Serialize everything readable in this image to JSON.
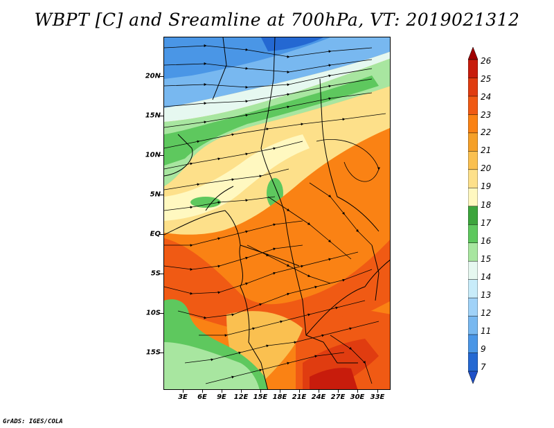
{
  "title": "WBPT [C] and Sreamline at 700hPa, VT: 2019021312",
  "credit": "GrADS: IGES/COLA",
  "map": {
    "latitude_labels": [
      "20N",
      "15N",
      "10N",
      "5N",
      "EQ",
      "5S",
      "10S",
      "15S"
    ],
    "longitude_labels": [
      "3E",
      "6E",
      "9E",
      "12E",
      "15E",
      "18E",
      "21E",
      "24E",
      "27E",
      "30E",
      "33E"
    ],
    "region": "Central and West Africa",
    "overlays": [
      "coastline",
      "country-borders",
      "streamlines"
    ]
  },
  "colorbar": {
    "levels": [
      "26",
      "25",
      "24",
      "23",
      "22",
      "21",
      "20",
      "19",
      "18",
      "17",
      "16",
      "15",
      "14",
      "13",
      "12",
      "11",
      "9",
      "7"
    ],
    "colors": [
      "#a00000",
      "#c81c0c",
      "#e03c10",
      "#f05a14",
      "#fa8214",
      "#f5a028",
      "#fac050",
      "#fde08a",
      "#fff8c0",
      "#3ca53c",
      "#5ec85e",
      "#a8e6a0",
      "#e6f8f0",
      "#c8ecfa",
      "#a0d2f8",
      "#78b8f0",
      "#4a96e6",
      "#2468d2",
      "#1e50c8"
    ]
  }
}
